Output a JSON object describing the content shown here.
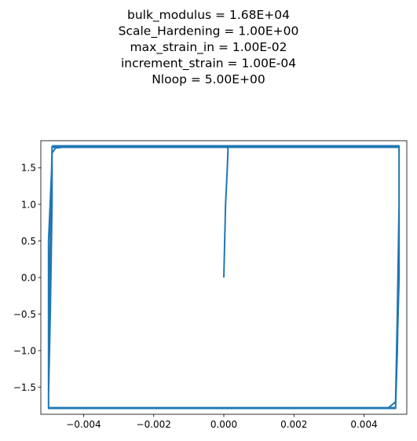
{
  "chart_data": {
    "type": "line",
    "title_lines": [
      "bulk_modulus = 1.68E+04",
      "Scale_Hardening = 1.00E+00",
      "max_strain_in = 1.00E-02",
      "increment_strain = 1.00E-04",
      "Nloop = 5.00E+00"
    ],
    "xlabel": "",
    "ylabel": "",
    "xlim": [
      -0.00522,
      0.00522
    ],
    "ylim": [
      -1.87,
      1.87
    ],
    "x_ticks": [
      -0.004,
      -0.002,
      0.0,
      0.002,
      0.004
    ],
    "x_tick_labels": [
      "−0.004",
      "−0.002",
      "0.000",
      "0.002",
      "0.004"
    ],
    "y_ticks": [
      -1.5,
      -1.0,
      -0.5,
      0.0,
      0.5,
      1.0,
      1.5
    ],
    "y_tick_labels": [
      "−1.5",
      "−1.0",
      "−0.5",
      "0.0",
      "0.5",
      "1.0",
      "1.5"
    ],
    "grid": false,
    "line_color": "#1f77b4",
    "series": [
      {
        "x": [
          0.0,
          5e-05,
          0.0001,
          0.00012,
          0.0001,
          -0.0046,
          -0.0048,
          -0.0049,
          -0.0049,
          -0.00495,
          -0.005,
          -0.005,
          0.0047,
          0.0049,
          0.00495,
          0.005,
          0.005,
          -0.0049,
          -0.0049,
          -0.005,
          -0.005,
          0.0049,
          0.00495,
          0.005,
          0.005,
          -0.0049,
          -0.00495,
          -0.005,
          -0.005,
          0.0049,
          0.005,
          0.005,
          -0.0049
        ],
        "y": [
          0.0,
          1.0,
          1.5,
          1.75,
          1.78,
          1.78,
          1.77,
          1.7,
          1.0,
          -0.5,
          -1.6,
          -1.78,
          -1.78,
          -1.7,
          -0.5,
          1.0,
          1.78,
          1.78,
          1.6,
          0.5,
          -1.78,
          -1.78,
          -1.0,
          0.5,
          1.79,
          1.79,
          0.5,
          -1.0,
          -1.79,
          -1.79,
          0.0,
          1.8,
          1.8
        ]
      }
    ]
  }
}
